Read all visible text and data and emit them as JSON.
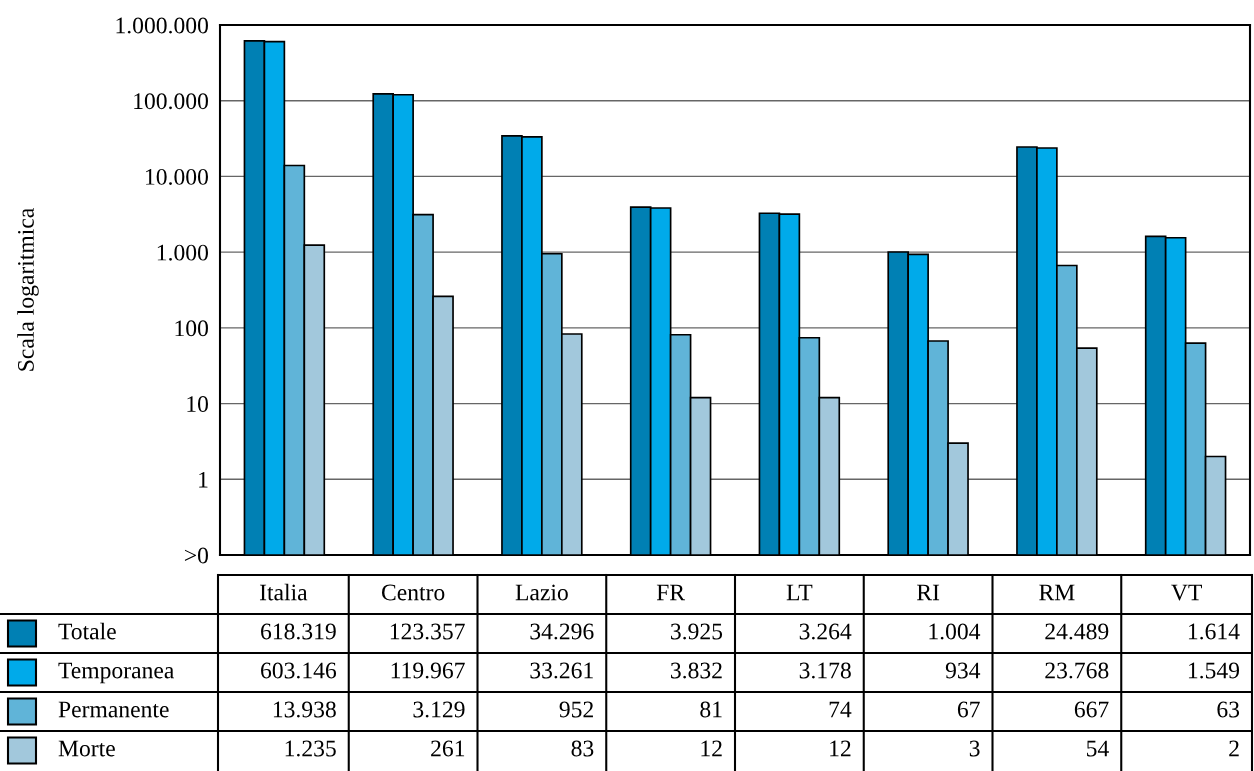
{
  "chart_data": {
    "type": "bar",
    "ylabel": "Scala logaritmica",
    "log": "y",
    "grid": "y",
    "legend": "bottom left",
    "categories": [
      "Italia",
      "Centro",
      "Lazio",
      "FR",
      "LT",
      "RI",
      "RM",
      "VT"
    ],
    "ylim": [
      0.1,
      1000000
    ],
    "yticks": [
      {
        "value": 0.1,
        "label": ">0"
      },
      {
        "value": 1,
        "label": "1"
      },
      {
        "value": 10,
        "label": "10"
      },
      {
        "value": 100,
        "label": "100"
      },
      {
        "value": 1000,
        "label": "1.000"
      },
      {
        "value": 10000,
        "label": "10.000"
      },
      {
        "value": 100000,
        "label": "100.000"
      },
      {
        "value": 1000000,
        "label": "1.000.000"
      }
    ],
    "series": [
      {
        "name": "Totale",
        "color": "#0080b4",
        "values": [
          618319,
          123357,
          34296,
          3925,
          3264,
          1004,
          24489,
          1614
        ],
        "value_labels": [
          "618.319",
          "123.357",
          "34.296",
          "3.925",
          "3.264",
          "1.004",
          "24.489",
          "1.614"
        ]
      },
      {
        "name": "Temporanea",
        "color": "#00aaea",
        "values": [
          603146,
          119967,
          33261,
          3832,
          3178,
          934,
          23768,
          1549
        ],
        "value_labels": [
          "603.146",
          "119.967",
          "33.261",
          "3.832",
          "3.178",
          "934",
          "23.768",
          "1.549"
        ]
      },
      {
        "name": "Permanente",
        "color": "#60b4d8",
        "values": [
          13938,
          3129,
          952,
          81,
          74,
          67,
          667,
          63
        ],
        "value_labels": [
          "13.938",
          "3.129",
          "952",
          "81",
          "74",
          "67",
          "667",
          "63"
        ]
      },
      {
        "name": "Morte",
        "color": "#a2c8dc",
        "values": [
          1235,
          261,
          83,
          12,
          12,
          3,
          54,
          2
        ],
        "value_labels": [
          "1.235",
          "261",
          "83",
          "12",
          "12",
          "3",
          "54",
          "2"
        ]
      }
    ]
  }
}
